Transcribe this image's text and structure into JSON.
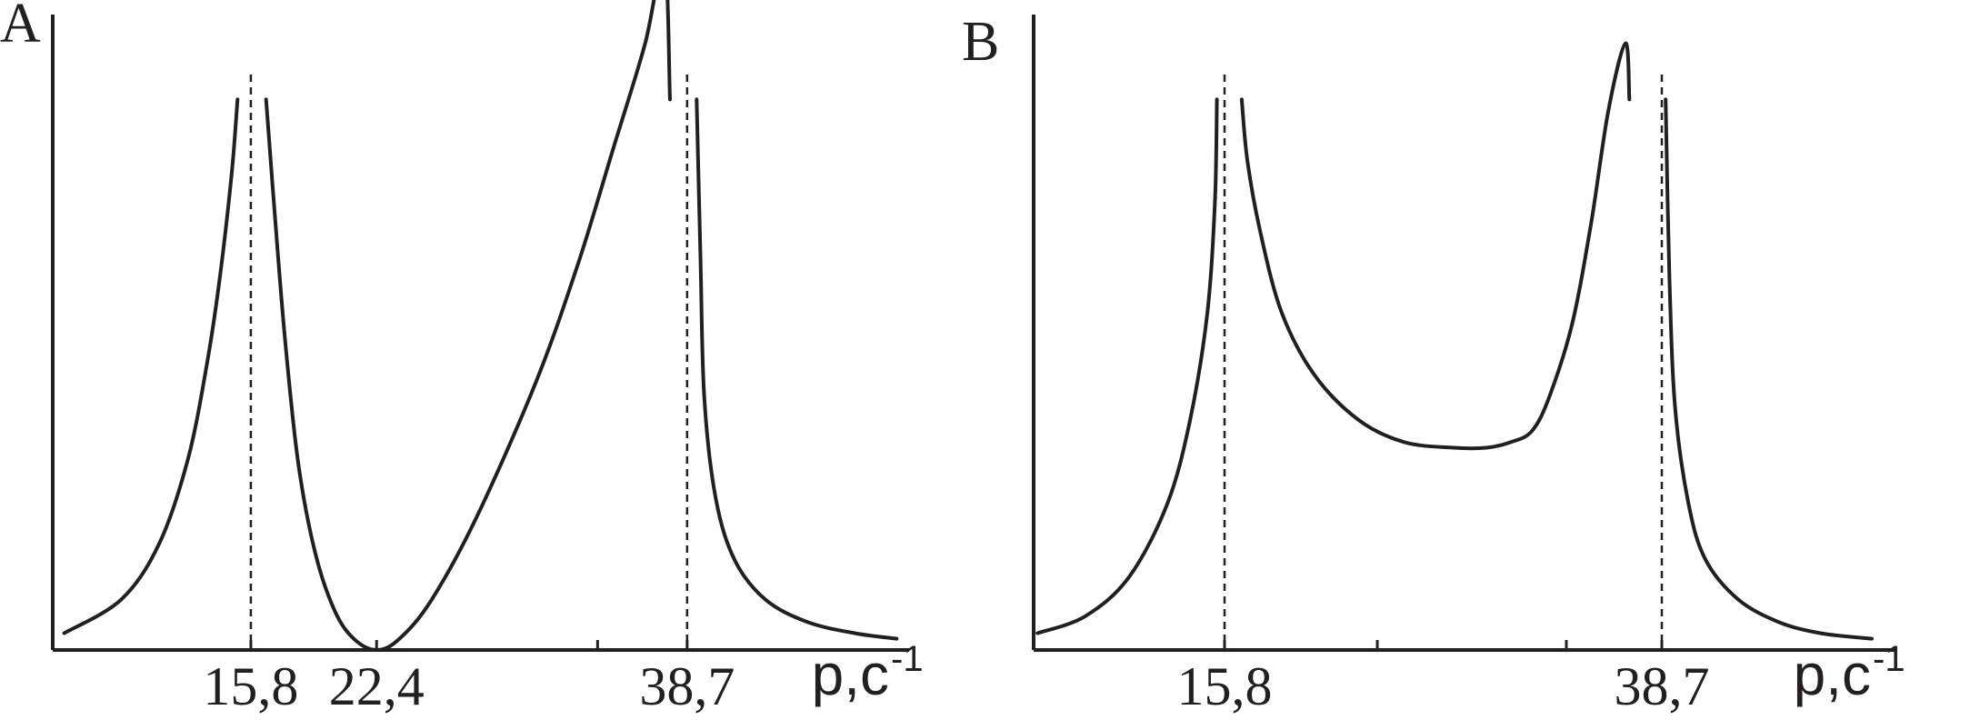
{
  "chart_data": [
    {
      "panel": "A",
      "type": "line",
      "xlabel": "p,c",
      "xlabel_superscript": "-1",
      "ylabel": "",
      "grid": false,
      "legend": "none",
      "xlim": [
        5,
        51
      ],
      "ylim": [
        0,
        1
      ],
      "x_tick_labels": [
        "15,8",
        "22,4",
        "38,7"
      ],
      "x_tick_values": [
        15.8,
        22.4,
        38.7
      ],
      "extra_x_tick_values": [
        34
      ],
      "asymptotes_x": [
        15.8,
        38.7
      ],
      "series": [
        {
          "segment": "left-of-first-resonance",
          "x": [
            6.0,
            9.0,
            11.0,
            12.5,
            13.5,
            14.2,
            14.8,
            15.1
          ],
          "y": [
            0.03,
            0.09,
            0.19,
            0.34,
            0.51,
            0.67,
            0.85,
            0.98
          ]
        },
        {
          "segment": "between-resonances",
          "x": [
            16.6,
            17.0,
            17.6,
            18.3,
            19.2,
            20.2,
            21.2,
            22.4,
            23.6,
            25.3,
            27.7,
            30.8,
            33.0,
            34.8,
            36.5,
            37.5,
            37.8
          ],
          "y": [
            0.98,
            0.8,
            0.55,
            0.33,
            0.17,
            0.07,
            0.02,
            0.0,
            0.02,
            0.09,
            0.24,
            0.48,
            0.69,
            0.89,
            1.08,
            1.23,
            0.98
          ]
        },
        {
          "segment": "right-of-second-resonance",
          "x": [
            39.2,
            39.4,
            39.6,
            40.2,
            41.2,
            42.8,
            45.0,
            47.5,
            49.7
          ],
          "y": [
            0.98,
            0.7,
            0.45,
            0.27,
            0.16,
            0.09,
            0.05,
            0.03,
            0.02
          ]
        }
      ]
    },
    {
      "panel": "B",
      "type": "line",
      "xlabel": "p,c",
      "xlabel_superscript": "-1",
      "ylabel": "",
      "grid": false,
      "legend": "none",
      "xlim": [
        5,
        51
      ],
      "ylim": [
        0,
        1
      ],
      "x_tick_labels": [
        "15,8",
        "38,7"
      ],
      "x_tick_values": [
        15.8,
        38.7
      ],
      "extra_x_tick_values": [
        23.8,
        33.7
      ],
      "asymptotes_x": [
        15.8,
        38.7
      ],
      "series": [
        {
          "segment": "left-of-first-resonance",
          "x": [
            6.0,
            8.5,
            10.8,
            12.8,
            14.0,
            14.9,
            15.3,
            15.4
          ],
          "y": [
            0.03,
            0.06,
            0.13,
            0.26,
            0.41,
            0.6,
            0.8,
            0.98
          ]
        },
        {
          "segment": "between-resonances",
          "x": [
            16.7,
            17.0,
            17.7,
            18.8,
            20.5,
            22.8,
            25.2,
            27.8,
            29.5,
            30.8,
            31.9,
            32.8,
            34.0,
            35.0,
            35.9,
            36.8,
            37.0
          ],
          "y": [
            0.98,
            0.87,
            0.74,
            0.6,
            0.49,
            0.41,
            0.37,
            0.36,
            0.36,
            0.37,
            0.39,
            0.45,
            0.58,
            0.76,
            0.96,
            1.08,
            0.98
          ]
        },
        {
          "segment": "right-of-second-resonance",
          "x": [
            38.9,
            39.1,
            39.4,
            40.1,
            41.0,
            42.7,
            44.8,
            47.0,
            49.7
          ],
          "y": [
            0.98,
            0.66,
            0.43,
            0.26,
            0.16,
            0.09,
            0.05,
            0.03,
            0.02
          ]
        }
      ]
    }
  ]
}
